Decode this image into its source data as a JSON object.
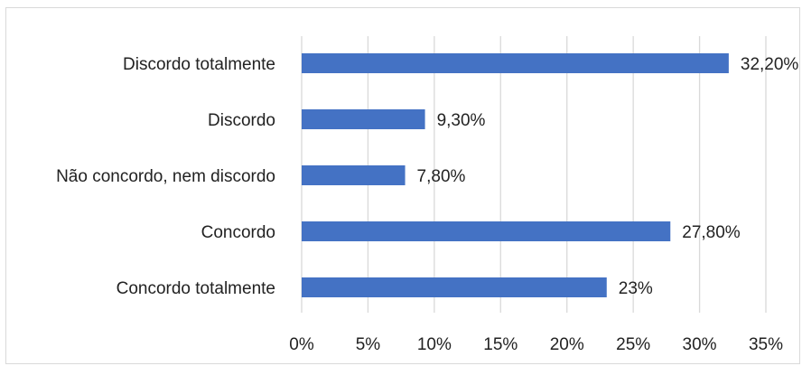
{
  "chart_data": {
    "type": "bar",
    "orientation": "horizontal",
    "title": "",
    "xlabel": "",
    "ylabel": "",
    "categories": [
      "Discordo totalmente",
      "Discordo",
      "Não concordo, nem discordo",
      "Concordo",
      "Concordo totalmente"
    ],
    "category_labels": [
      "Discordo totalmente",
      "Discordo",
      "Não concordo, nem discordo",
      "Concordo ",
      "Concordo totalmente"
    ],
    "values": [
      32.2,
      9.3,
      7.8,
      27.8,
      23
    ],
    "data_labels": [
      "32,20%",
      "9,30%",
      "7,80%",
      "27,80%",
      "23%"
    ],
    "xlim": [
      0,
      35
    ],
    "x_ticks": [
      0,
      5,
      10,
      15,
      20,
      25,
      30,
      35
    ],
    "x_tick_labels": [
      "0%",
      "5%",
      "10%",
      "15%",
      "20%",
      "25%",
      "30%",
      "35%"
    ],
    "grid": true,
    "legend": "none",
    "bar_color": "#4472c4"
  }
}
